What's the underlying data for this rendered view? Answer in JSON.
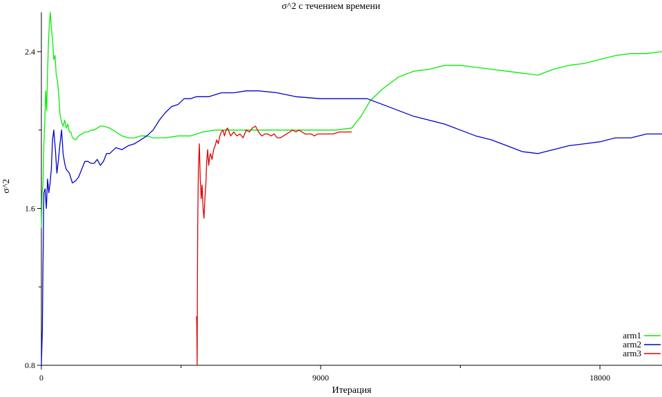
{
  "chart_data": {
    "type": "line",
    "title": "σ^2 с течением времени",
    "xlabel": "Итерация",
    "ylabel": "σ^2",
    "xlim": [
      0,
      20000
    ],
    "ylim": [
      0.8,
      2.6
    ],
    "x_ticks": [
      0,
      9000,
      18000
    ],
    "x_tick_labels": [
      "0",
      "9000",
      "18000"
    ],
    "x_minor_ticks": [
      4500,
      13500
    ],
    "y_ticks": [
      0.8,
      1.6,
      2.4
    ],
    "y_tick_labels": [
      "0.8",
      "1.6",
      "2.4"
    ],
    "y_minor_ticks": [
      1.2,
      2.0
    ],
    "grid": false,
    "legend_position": "bottom-right",
    "series": [
      {
        "name": "arm1",
        "color": "#00ee00",
        "points": [
          [
            0,
            1.5
          ],
          [
            25,
            1.68
          ],
          [
            50,
            1.72
          ],
          [
            80,
            1.92
          ],
          [
            110,
            2.05
          ],
          [
            140,
            2.2
          ],
          [
            170,
            2.1
          ],
          [
            200,
            2.3
          ],
          [
            230,
            2.45
          ],
          [
            260,
            2.55
          ],
          [
            290,
            2.6
          ],
          [
            320,
            2.52
          ],
          [
            360,
            2.46
          ],
          [
            400,
            2.36
          ],
          [
            440,
            2.38
          ],
          [
            480,
            2.28
          ],
          [
            520,
            2.25
          ],
          [
            560,
            2.18
          ],
          [
            600,
            2.08
          ],
          [
            650,
            2.04
          ],
          [
            700,
            2.02
          ],
          [
            750,
            2.05
          ],
          [
            800,
            2.01
          ],
          [
            850,
            2.03
          ],
          [
            900,
            1.99
          ],
          [
            950,
            1.99
          ],
          [
            1000,
            1.96
          ],
          [
            1100,
            1.95
          ],
          [
            1200,
            1.97
          ],
          [
            1300,
            1.98
          ],
          [
            1400,
            1.99
          ],
          [
            1500,
            1.99
          ],
          [
            1600,
            2.0
          ],
          [
            1700,
            2.0
          ],
          [
            1800,
            2.01
          ],
          [
            1900,
            2.02
          ],
          [
            2000,
            2.02
          ],
          [
            2200,
            2.01
          ],
          [
            2400,
            1.99
          ],
          [
            2600,
            1.97
          ],
          [
            2800,
            1.96
          ],
          [
            3000,
            1.96
          ],
          [
            3200,
            1.97
          ],
          [
            3400,
            1.97
          ],
          [
            3600,
            1.96
          ],
          [
            3800,
            1.96
          ],
          [
            4000,
            1.96
          ],
          [
            4400,
            1.97
          ],
          [
            4800,
            1.97
          ],
          [
            5200,
            1.99
          ],
          [
            5600,
            2.0
          ],
          [
            6000,
            2.0
          ],
          [
            7000,
            2.0
          ],
          [
            8000,
            2.0
          ],
          [
            9000,
            2.0
          ],
          [
            9500,
            2.0
          ],
          [
            10000,
            2.01
          ],
          [
            10300,
            2.07
          ],
          [
            10600,
            2.15
          ],
          [
            11000,
            2.21
          ],
          [
            11500,
            2.27
          ],
          [
            12000,
            2.3
          ],
          [
            12500,
            2.31
          ],
          [
            13000,
            2.33
          ],
          [
            13500,
            2.33
          ],
          [
            14000,
            2.32
          ],
          [
            14500,
            2.31
          ],
          [
            15000,
            2.3
          ],
          [
            15500,
            2.29
          ],
          [
            16000,
            2.28
          ],
          [
            16500,
            2.31
          ],
          [
            17000,
            2.33
          ],
          [
            17500,
            2.34
          ],
          [
            18000,
            2.36
          ],
          [
            18500,
            2.38
          ],
          [
            19000,
            2.39
          ],
          [
            19500,
            2.39
          ],
          [
            20000,
            2.4
          ]
        ]
      },
      {
        "name": "arm2",
        "color": "#0000cc",
        "points": [
          [
            0,
            0.8
          ],
          [
            30,
            0.98
          ],
          [
            50,
            1.3
          ],
          [
            80,
            1.68
          ],
          [
            120,
            1.7
          ],
          [
            160,
            1.6
          ],
          [
            200,
            1.75
          ],
          [
            240,
            1.68
          ],
          [
            280,
            1.73
          ],
          [
            320,
            1.8
          ],
          [
            360,
            1.95
          ],
          [
            400,
            2.0
          ],
          [
            450,
            1.9
          ],
          [
            500,
            1.78
          ],
          [
            550,
            1.85
          ],
          [
            600,
            1.93
          ],
          [
            650,
            2.0
          ],
          [
            700,
            1.88
          ],
          [
            750,
            1.83
          ],
          [
            800,
            1.8
          ],
          [
            900,
            1.78
          ],
          [
            1000,
            1.73
          ],
          [
            1100,
            1.74
          ],
          [
            1200,
            1.76
          ],
          [
            1300,
            1.8
          ],
          [
            1400,
            1.84
          ],
          [
            1500,
            1.84
          ],
          [
            1600,
            1.83
          ],
          [
            1700,
            1.83
          ],
          [
            1800,
            1.85
          ],
          [
            1900,
            1.82
          ],
          [
            2000,
            1.84
          ],
          [
            2100,
            1.88
          ],
          [
            2200,
            1.88
          ],
          [
            2400,
            1.91
          ],
          [
            2600,
            1.9
          ],
          [
            2800,
            1.92
          ],
          [
            3000,
            1.93
          ],
          [
            3200,
            1.95
          ],
          [
            3400,
            1.97
          ],
          [
            3600,
            2.0
          ],
          [
            3800,
            2.05
          ],
          [
            4000,
            2.09
          ],
          [
            4200,
            2.12
          ],
          [
            4400,
            2.13
          ],
          [
            4600,
            2.16
          ],
          [
            4800,
            2.16
          ],
          [
            5000,
            2.17
          ],
          [
            5400,
            2.17
          ],
          [
            5800,
            2.19
          ],
          [
            6200,
            2.19
          ],
          [
            6600,
            2.2
          ],
          [
            7000,
            2.2
          ],
          [
            7600,
            2.19
          ],
          [
            8200,
            2.17
          ],
          [
            9000,
            2.16
          ],
          [
            9600,
            2.16
          ],
          [
            10000,
            2.16
          ],
          [
            10500,
            2.16
          ],
          [
            11000,
            2.13
          ],
          [
            11500,
            2.1
          ],
          [
            12000,
            2.07
          ],
          [
            12500,
            2.05
          ],
          [
            13000,
            2.03
          ],
          [
            13500,
            2.0
          ],
          [
            14000,
            1.97
          ],
          [
            14500,
            1.95
          ],
          [
            15000,
            1.92
          ],
          [
            15500,
            1.89
          ],
          [
            16000,
            1.88
          ],
          [
            16500,
            1.9
          ],
          [
            17000,
            1.92
          ],
          [
            17500,
            1.93
          ],
          [
            18000,
            1.94
          ],
          [
            18500,
            1.96
          ],
          [
            19000,
            1.96
          ],
          [
            19500,
            1.98
          ],
          [
            20000,
            1.98
          ]
        ]
      },
      {
        "name": "arm3",
        "color": "#dd0000",
        "points": [
          [
            5000,
            1.05
          ],
          [
            5010,
            1.0
          ],
          [
            5020,
            0.8
          ],
          [
            5030,
            1.3
          ],
          [
            5040,
            1.55
          ],
          [
            5060,
            1.8
          ],
          [
            5090,
            1.93
          ],
          [
            5120,
            1.75
          ],
          [
            5150,
            1.65
          ],
          [
            5180,
            1.72
          ],
          [
            5210,
            1.6
          ],
          [
            5240,
            1.55
          ],
          [
            5270,
            1.65
          ],
          [
            5300,
            1.72
          ],
          [
            5330,
            1.85
          ],
          [
            5360,
            1.9
          ],
          [
            5390,
            1.82
          ],
          [
            5420,
            1.86
          ],
          [
            5450,
            1.88
          ],
          [
            5500,
            1.85
          ],
          [
            5550,
            1.9
          ],
          [
            5600,
            1.92
          ],
          [
            5650,
            1.95
          ],
          [
            5700,
            1.93
          ],
          [
            5750,
            1.97
          ],
          [
            5800,
            1.99
          ],
          [
            5850,
            2.0
          ],
          [
            5900,
            1.97
          ],
          [
            5950,
            2.0
          ],
          [
            6000,
            2.01
          ],
          [
            6100,
            1.97
          ],
          [
            6200,
            1.99
          ],
          [
            6300,
            1.97
          ],
          [
            6400,
            1.98
          ],
          [
            6500,
            1.96
          ],
          [
            6600,
            2.0
          ],
          [
            6700,
            1.99
          ],
          [
            6800,
            2.01
          ],
          [
            6900,
            2.02
          ],
          [
            7000,
            1.99
          ],
          [
            7100,
            1.97
          ],
          [
            7200,
            1.98
          ],
          [
            7300,
            1.98
          ],
          [
            7400,
            1.97
          ],
          [
            7500,
            1.98
          ],
          [
            7600,
            1.96
          ],
          [
            7700,
            1.96
          ],
          [
            7800,
            1.97
          ],
          [
            7900,
            1.98
          ],
          [
            8000,
            1.99
          ],
          [
            8100,
            2.0
          ],
          [
            8200,
            1.99
          ],
          [
            8300,
            2.0
          ],
          [
            8400,
            1.99
          ],
          [
            8500,
            1.98
          ],
          [
            8600,
            1.98
          ],
          [
            8700,
            1.98
          ],
          [
            8800,
            1.97
          ],
          [
            8900,
            1.98
          ],
          [
            9000,
            1.98
          ],
          [
            9200,
            1.98
          ],
          [
            9400,
            1.98
          ],
          [
            9600,
            1.99
          ],
          [
            9800,
            1.99
          ],
          [
            10000,
            1.99
          ]
        ]
      }
    ]
  }
}
